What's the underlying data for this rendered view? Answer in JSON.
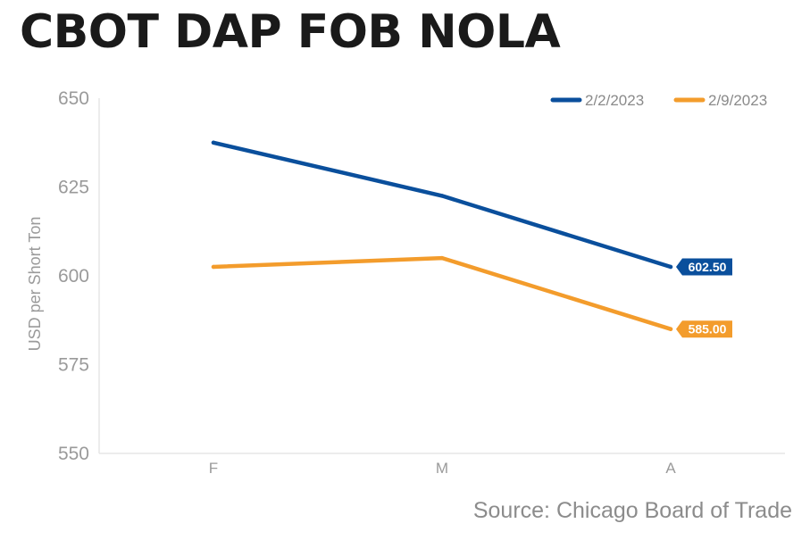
{
  "chart_data": {
    "type": "line",
    "title": "CBOT DAP FOB NOLA",
    "source": "Source: Chicago Board of Trade",
    "xlabel": "",
    "ylabel": "USD per Short Ton",
    "categories": [
      "F",
      "M",
      "A"
    ],
    "ylim": [
      550,
      650
    ],
    "yticks": [
      550,
      575,
      600,
      625,
      650
    ],
    "grid": false,
    "legend_position": "top-right",
    "series": [
      {
        "name": "2/2/2023",
        "color": "#0a4f9c",
        "values": [
          637.5,
          622.5,
          602.5
        ],
        "end_label": "602.50"
      },
      {
        "name": "2/9/2023",
        "color": "#f39c2c",
        "values": [
          602.5,
          605.0,
          585.0
        ],
        "end_label": "585.00"
      }
    ]
  }
}
